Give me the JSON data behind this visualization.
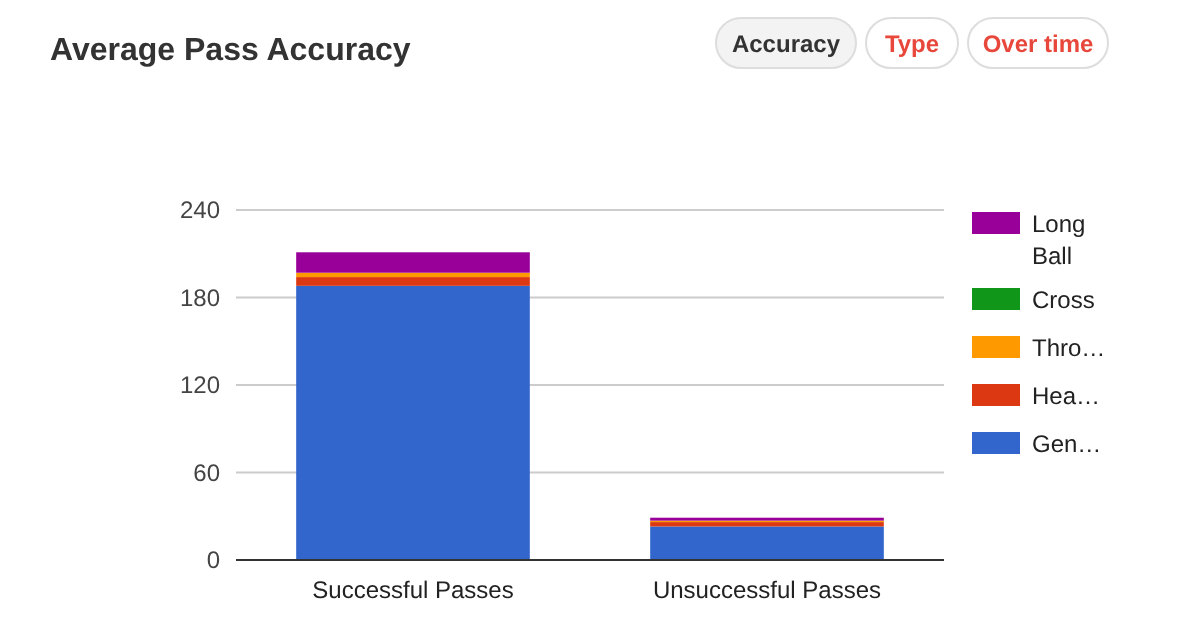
{
  "chart_data": {
    "type": "bar",
    "title": "Average Pass Accuracy",
    "categories": [
      "Successful Passes",
      "Unsuccessful Passes"
    ],
    "stacked": true,
    "series": [
      {
        "name": "Gen…",
        "color": "#3366cc",
        "values": [
          188,
          23
        ]
      },
      {
        "name": "Hea…",
        "color": "#dc3912",
        "values": [
          6,
          3
        ]
      },
      {
        "name": "Thro…",
        "color": "#ff9900",
        "values": [
          3,
          1
        ]
      },
      {
        "name": "Cross",
        "color": "#109618",
        "values": [
          0,
          0
        ]
      },
      {
        "name": "Long Ball",
        "color": "#990099",
        "values": [
          14,
          2
        ]
      }
    ],
    "ylim": [
      0,
      240
    ],
    "yticks": [
      0,
      60,
      120,
      180,
      240
    ],
    "grid": "y",
    "legend": "right",
    "annotations": [
      "Accuracy",
      "Type",
      "Over time"
    ]
  }
}
